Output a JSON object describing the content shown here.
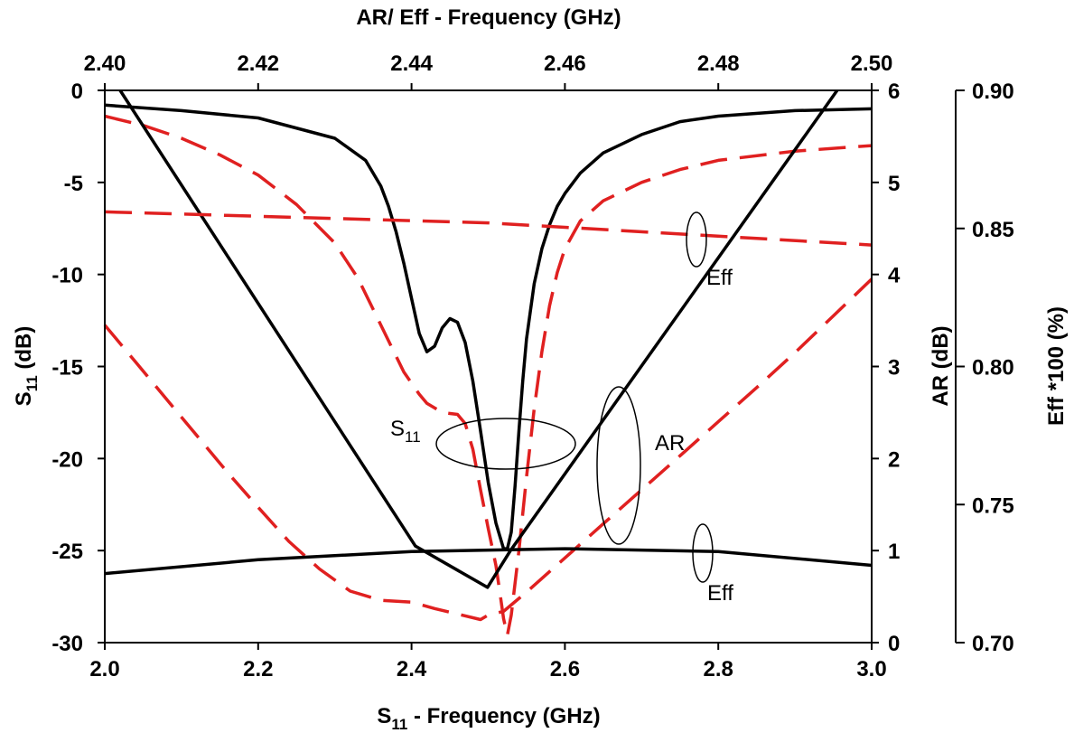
{
  "chart_data": {
    "type": "line",
    "title": "AR/ Eff - Frequency (GHz)",
    "xlabel": "S11 - Frequency (GHz)",
    "xlabel_main": "S",
    "xlabel_sub": "11",
    "xlabel_rest": " - Frequency (GHz)",
    "ylabel_left_main": "S",
    "ylabel_left_sub": "11",
    "ylabel_left_rest": " (dB)",
    "ylabel_right1": "AR (dB)",
    "ylabel_right2": "Eff *100 (%)",
    "colors": {
      "solid": "#000000",
      "dashed": "#e02020",
      "axes": "#000000"
    },
    "axes": {
      "x_bottom": {
        "range": [
          2.0,
          3.0
        ],
        "ticks": [
          "2.0",
          "2.2",
          "2.4",
          "2.6",
          "2.8",
          "3.0"
        ]
      },
      "x_top": {
        "range": [
          2.4,
          2.5
        ],
        "ticks": [
          "2.40",
          "2.42",
          "2.44",
          "2.46",
          "2.48",
          "2.50"
        ]
      },
      "y_left": {
        "range": [
          -30,
          0
        ],
        "ticks": [
          "0",
          "-5",
          "-10",
          "-15",
          "-20",
          "-25",
          "-30"
        ]
      },
      "y_right_ar": {
        "range": [
          0,
          6
        ],
        "ticks": [
          "6",
          "5",
          "4",
          "3",
          "2",
          "1",
          "0"
        ]
      },
      "y_right_eff": {
        "range": [
          0.7,
          0.9
        ],
        "ticks": [
          "0.90",
          "0.85",
          "0.80",
          "0.75",
          "0.70"
        ]
      },
      "grid": false
    },
    "annotations": {
      "s11": {
        "main": "S",
        "sub": "11"
      },
      "ar": "AR",
      "eff_upper": "Eff",
      "eff_lower": "Eff"
    },
    "series": [
      {
        "group": "S11",
        "style": "solid",
        "xaxis": "bottom",
        "yaxis": "s11",
        "x": [
          2.0,
          2.1,
          2.2,
          2.3,
          2.34,
          2.36,
          2.37,
          2.38,
          2.39,
          2.4,
          2.41,
          2.42,
          2.43,
          2.44,
          2.45,
          2.46,
          2.47,
          2.48,
          2.49,
          2.5,
          2.51,
          2.52,
          2.525,
          2.53,
          2.535,
          2.54,
          2.545,
          2.55,
          2.56,
          2.57,
          2.58,
          2.59,
          2.6,
          2.62,
          2.65,
          2.7,
          2.75,
          2.8,
          2.9,
          3.0
        ],
        "y": [
          -0.8,
          -1.1,
          -1.5,
          -2.6,
          -3.8,
          -5.2,
          -6.3,
          -7.7,
          -9.4,
          -11.3,
          -13.2,
          -14.2,
          -13.9,
          -12.9,
          -12.4,
          -12.6,
          -13.7,
          -15.8,
          -18.5,
          -21.3,
          -23.5,
          -24.9,
          -24.9,
          -24.0,
          -21.5,
          -18.5,
          -15.8,
          -13.5,
          -10.5,
          -8.6,
          -7.3,
          -6.3,
          -5.6,
          -4.5,
          -3.4,
          -2.4,
          -1.7,
          -1.4,
          -1.1,
          -1.0
        ]
      },
      {
        "group": "S11",
        "style": "dashed",
        "xaxis": "bottom",
        "yaxis": "s11",
        "x": [
          2.0,
          2.05,
          2.1,
          2.15,
          2.2,
          2.25,
          2.3,
          2.33,
          2.35,
          2.37,
          2.39,
          2.41,
          2.42,
          2.44,
          2.46,
          2.47,
          2.48,
          2.49,
          2.5,
          2.51,
          2.515,
          2.52,
          2.525,
          2.53,
          2.54,
          2.55,
          2.56,
          2.57,
          2.58,
          2.59,
          2.6,
          2.62,
          2.65,
          2.7,
          2.75,
          2.8,
          2.9,
          3.0
        ],
        "y": [
          -1.4,
          -1.9,
          -2.6,
          -3.5,
          -4.6,
          -6.2,
          -8.3,
          -10.2,
          -11.9,
          -13.6,
          -15.3,
          -16.5,
          -17.0,
          -17.5,
          -17.6,
          -18.1,
          -19.5,
          -21.7,
          -23.8,
          -25.8,
          -27.2,
          -28.7,
          -29.6,
          -28.5,
          -25.0,
          -21.0,
          -17.3,
          -14.2,
          -11.7,
          -9.9,
          -8.6,
          -7.1,
          -6.0,
          -5.0,
          -4.3,
          -3.8,
          -3.3,
          -3.0
        ]
      },
      {
        "group": "AR",
        "style": "solid",
        "xaxis": "top",
        "yaxis": "ar",
        "x": [
          2.402,
          2.4405,
          2.4499,
          2.4529,
          2.4955
        ],
        "y": [
          6.0,
          1.05,
          0.6,
          1.0,
          6.0
        ]
      },
      {
        "group": "AR",
        "style": "dashed",
        "xaxis": "top",
        "yaxis": "ar",
        "x": [
          2.4,
          2.404,
          2.408,
          2.412,
          2.416,
          2.42,
          2.424,
          2.428,
          2.432,
          2.436,
          2.44,
          2.443,
          2.446,
          2.449,
          2.45,
          2.452,
          2.455,
          2.46,
          2.465,
          2.47,
          2.475,
          2.48,
          2.485,
          2.49,
          2.495,
          2.5
        ],
        "y": [
          3.45,
          3.05,
          2.65,
          2.25,
          1.85,
          1.47,
          1.1,
          0.8,
          0.56,
          0.46,
          0.44,
          0.37,
          0.31,
          0.25,
          0.3,
          0.34,
          0.55,
          0.92,
          1.29,
          1.66,
          2.03,
          2.4,
          2.77,
          3.15,
          3.55,
          3.95
        ]
      },
      {
        "group": "Eff",
        "style": "dashed",
        "xaxis": "top",
        "yaxis": "eff",
        "x": [
          2.4,
          2.45,
          2.5
        ],
        "y": [
          0.856,
          0.852,
          0.844
        ]
      },
      {
        "group": "Eff",
        "style": "solid",
        "xaxis": "top",
        "yaxis": "eff",
        "x": [
          2.4,
          2.42,
          2.44,
          2.46,
          2.48,
          2.5
        ],
        "y": [
          0.725,
          0.73,
          0.733,
          0.734,
          0.733,
          0.728
        ]
      }
    ]
  }
}
